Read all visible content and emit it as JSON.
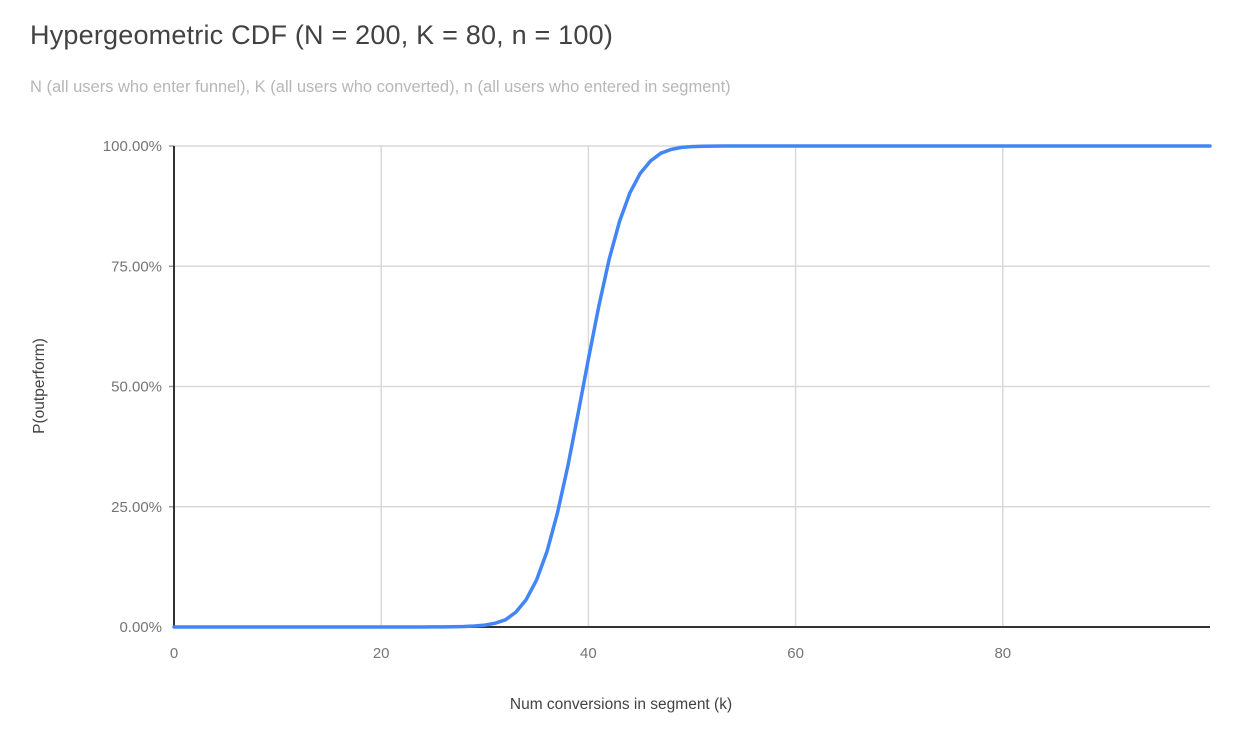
{
  "header": {
    "title": "Hypergeometric CDF (N = 200, K = 80, n = 100)",
    "subtitle": "N (all users who enter funnel), K (all users who converted), n (all users who entered in segment)"
  },
  "chart_data": {
    "type": "line",
    "title": "Hypergeometric CDF (N = 200, K = 80, n = 100)",
    "subtitle": "N (all users who enter funnel), K (all users who converted), n (all users who entered in segment)",
    "xlabel": "Num conversions in segment (k)",
    "ylabel": "P(outperform)",
    "xlim": [
      0,
      100
    ],
    "ylim": [
      0,
      1
    ],
    "grid": true,
    "legend_position": "none",
    "x_ticks": [
      {
        "value": 0,
        "label": "0"
      },
      {
        "value": 20,
        "label": "20"
      },
      {
        "value": 40,
        "label": "40"
      },
      {
        "value": 60,
        "label": "60"
      },
      {
        "value": 80,
        "label": "80"
      }
    ],
    "y_ticks": [
      {
        "value": 0.0,
        "label": "0.00%"
      },
      {
        "value": 0.25,
        "label": "25.00%"
      },
      {
        "value": 0.5,
        "label": "50.00%"
      },
      {
        "value": 0.75,
        "label": "75.00%"
      },
      {
        "value": 1.0,
        "label": "100.00%"
      }
    ],
    "series": [
      {
        "name": "P(outperform)",
        "color": "#4285f4",
        "points": [
          [
            0,
            0
          ],
          [
            5,
            0
          ],
          [
            10,
            0
          ],
          [
            15,
            0
          ],
          [
            20,
            0
          ],
          [
            23,
            0
          ],
          [
            24,
            0.0001
          ],
          [
            25,
            0.0002
          ],
          [
            26,
            0.0003
          ],
          [
            27,
            0.0006
          ],
          [
            28,
            0.001
          ],
          [
            29,
            0.002
          ],
          [
            30,
            0.004
          ],
          [
            31,
            0.008
          ],
          [
            32,
            0.015
          ],
          [
            33,
            0.031
          ],
          [
            34,
            0.057
          ],
          [
            35,
            0.098
          ],
          [
            36,
            0.157
          ],
          [
            37,
            0.236
          ],
          [
            38,
            0.333
          ],
          [
            39,
            0.443
          ],
          [
            40,
            0.557
          ],
          [
            41,
            0.667
          ],
          [
            42,
            0.764
          ],
          [
            43,
            0.843
          ],
          [
            44,
            0.902
          ],
          [
            45,
            0.943
          ],
          [
            46,
            0.969
          ],
          [
            47,
            0.985
          ],
          [
            48,
            0.993
          ],
          [
            49,
            0.997
          ],
          [
            50,
            0.9987
          ],
          [
            51,
            0.9995
          ],
          [
            52,
            0.9998
          ],
          [
            53,
            0.9999
          ],
          [
            54,
            1
          ],
          [
            56,
            1
          ],
          [
            60,
            1
          ],
          [
            70,
            1
          ],
          [
            80,
            1
          ],
          [
            90,
            1
          ],
          [
            100,
            1
          ]
        ]
      }
    ],
    "colors": {
      "line": "#4285f4",
      "gridline": "#d9d9d9",
      "axis_line": "#333333",
      "tick_label": "#757575",
      "title": "#424242",
      "subtitle": "#b7b7b7",
      "background": "#ffffff"
    }
  }
}
